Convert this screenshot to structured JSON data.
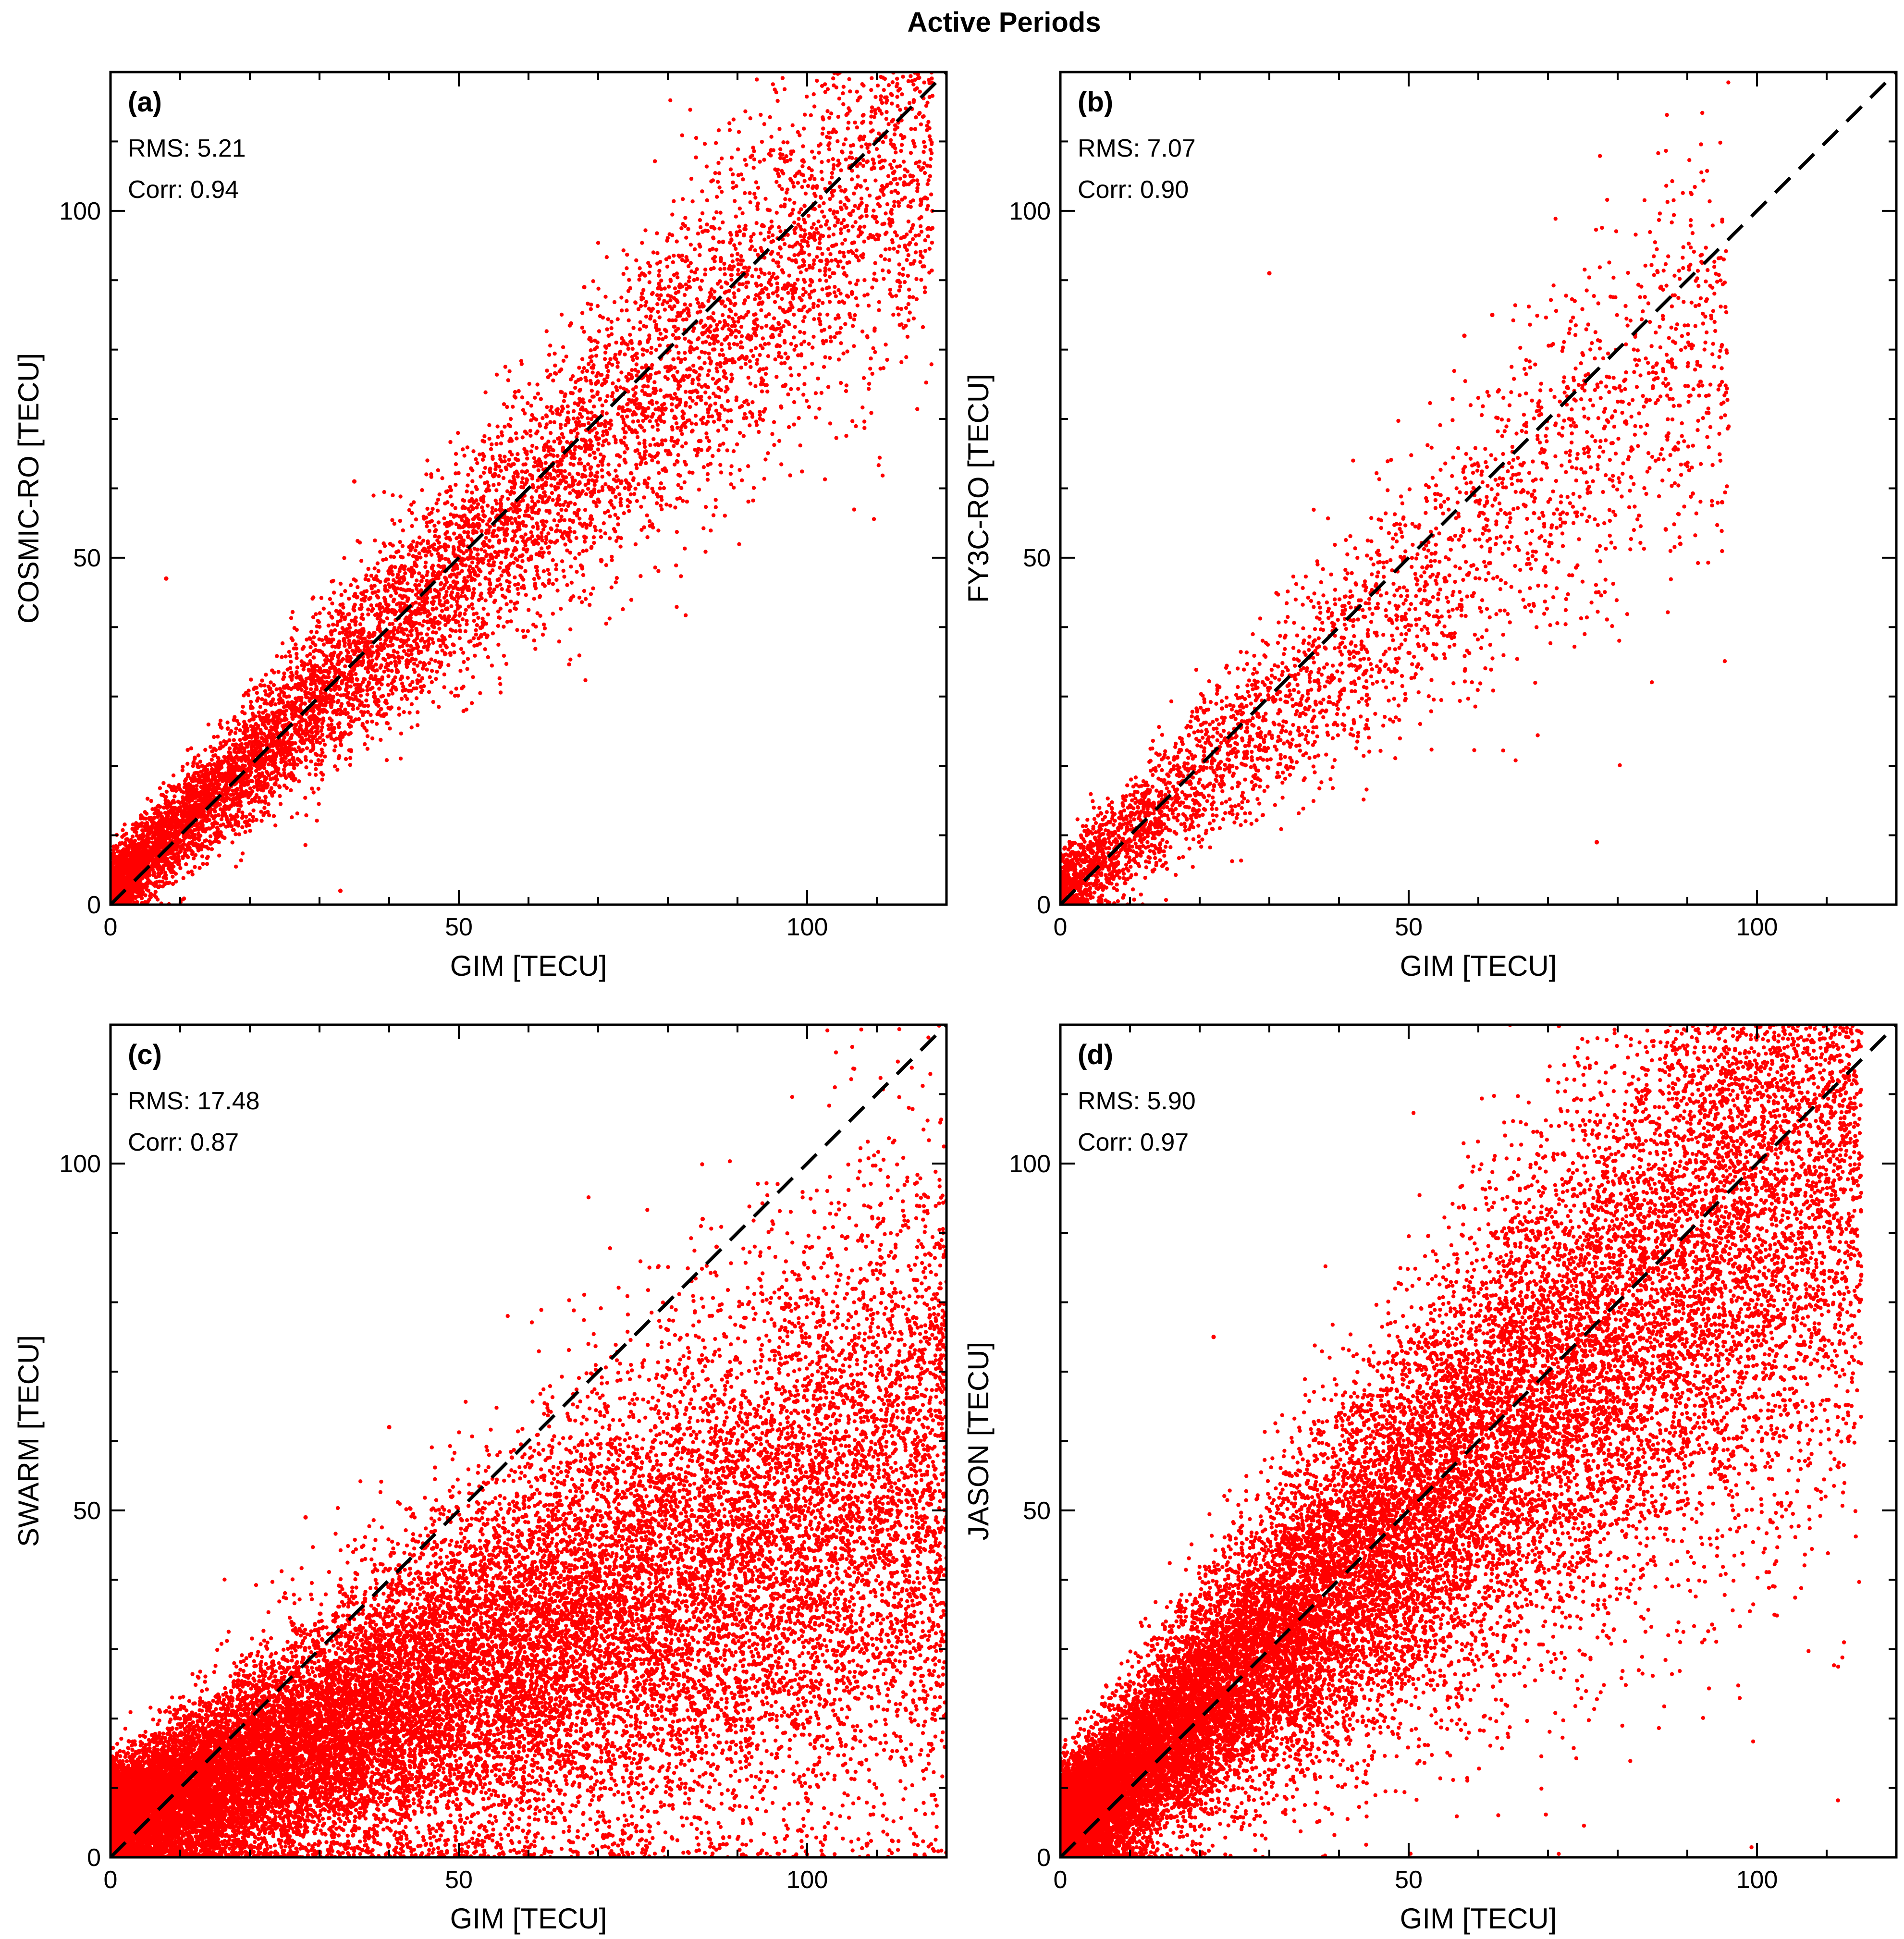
{
  "chart_data": {
    "title": "Active Periods",
    "panels": [
      {
        "type": "scatter",
        "panel_label": "(a)",
        "rms_text": "RMS: 5.21",
        "corr_text": "Corr: 0.94",
        "xlabel": "GIM [TECU]",
        "ylabel": "COSMIC-RO [TECU]",
        "xlim": [
          0,
          120
        ],
        "ylim": [
          0,
          120
        ],
        "xticks": [
          0,
          50,
          100
        ],
        "yticks": [
          0,
          50,
          100
        ],
        "reference_line": "y = x",
        "series": {
          "name": "COSMIC-RO vs GIM",
          "color": "#ff0000",
          "n_points": 9000,
          "x_range": [
            0,
            118
          ],
          "slope": 0.93,
          "intercept": 2.0,
          "spread": 4.5,
          "density": "dense near origin, sparse above 60 TECU",
          "outliers": [
            [
              112,
              104
            ],
            [
              114,
              105
            ],
            [
              85,
              97
            ],
            [
              68,
              89
            ],
            [
              35,
              61
            ],
            [
              8,
              47
            ],
            [
              33,
              2
            ]
          ]
        }
      },
      {
        "type": "scatter",
        "panel_label": "(b)",
        "rms_text": "RMS: 7.07",
        "corr_text": "Corr: 0.90",
        "xlabel": "GIM [TECU]",
        "ylabel": "FY3C-RO [TECU]",
        "xlim": [
          0,
          120
        ],
        "ylim": [
          0,
          120
        ],
        "xticks": [
          0,
          50,
          100
        ],
        "yticks": [
          0,
          50,
          100
        ],
        "reference_line": "y = x",
        "series": {
          "name": "FY3C-RO vs GIM",
          "color": "#ff0000",
          "n_points": 3500,
          "x_range": [
            0,
            96
          ],
          "slope": 0.85,
          "intercept": 1.5,
          "spread": 5.5,
          "density": "dense below 40 TECU, sparse above",
          "outliers": [
            [
              30,
              91
            ],
            [
              62,
              85
            ],
            [
              58,
              82
            ],
            [
              95,
              58
            ],
            [
              89,
              52
            ],
            [
              77,
              9
            ]
          ]
        }
      },
      {
        "type": "scatter",
        "panel_label": "(c)",
        "rms_text": "RMS: 17.48",
        "corr_text": "Corr: 0.87",
        "xlabel": "GIM [TECU]",
        "ylabel": "SWARM [TECU]",
        "xlim": [
          0,
          120
        ],
        "ylim": [
          0,
          120
        ],
        "xticks": [
          0,
          50,
          100
        ],
        "yticks": [
          0,
          50,
          100
        ],
        "reference_line": "y = x",
        "series": {
          "name": "SWARM vs GIM",
          "color": "#ff0000",
          "n_points": 26000,
          "x_range": [
            0,
            120
          ],
          "slope": 0.42,
          "intercept": 5.0,
          "spread": 7.0,
          "density": "saturated band from origin to 120 TECU",
          "outliers": [
            [
              85,
              92
            ],
            [
              87,
              88
            ],
            [
              40,
              62
            ],
            [
              28,
              49
            ],
            [
              80,
              76
            ],
            [
              105,
              70
            ]
          ]
        }
      },
      {
        "type": "scatter",
        "panel_label": "(d)",
        "rms_text": "RMS: 5.90",
        "corr_text": "Corr: 0.97",
        "xlabel": "GIM [TECU]",
        "ylabel": "JASON [TECU]",
        "xlim": [
          0,
          120
        ],
        "ylim": [
          0,
          120
        ],
        "xticks": [
          0,
          50,
          100
        ],
        "yticks": [
          0,
          50,
          100
        ],
        "reference_line": "y = x",
        "series": {
          "name": "JASON vs GIM",
          "color": "#ff0000",
          "n_points": 26000,
          "x_range": [
            0,
            115
          ],
          "slope": 0.92,
          "intercept": 3.0,
          "spread": 8.0,
          "density": "saturated band with looping track structures",
          "outliers": [
            [
              70,
              112
            ],
            [
              100,
              112
            ],
            [
              115,
              101
            ],
            [
              103,
              51
            ],
            [
              103,
              58
            ],
            [
              22,
              75
            ]
          ]
        }
      }
    ]
  }
}
